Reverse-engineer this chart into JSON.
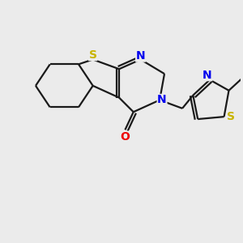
{
  "background_color": "#EBEBEB",
  "bond_color": "#1a1a1a",
  "sulfur_color": "#C8B400",
  "nitrogen_color": "#0000EE",
  "oxygen_color": "#EE0000",
  "line_width": 1.6,
  "figsize": [
    3.0,
    3.0
  ],
  "dpi": 100,
  "xlim": [
    0,
    10
  ],
  "ylim": [
    0,
    10
  ]
}
